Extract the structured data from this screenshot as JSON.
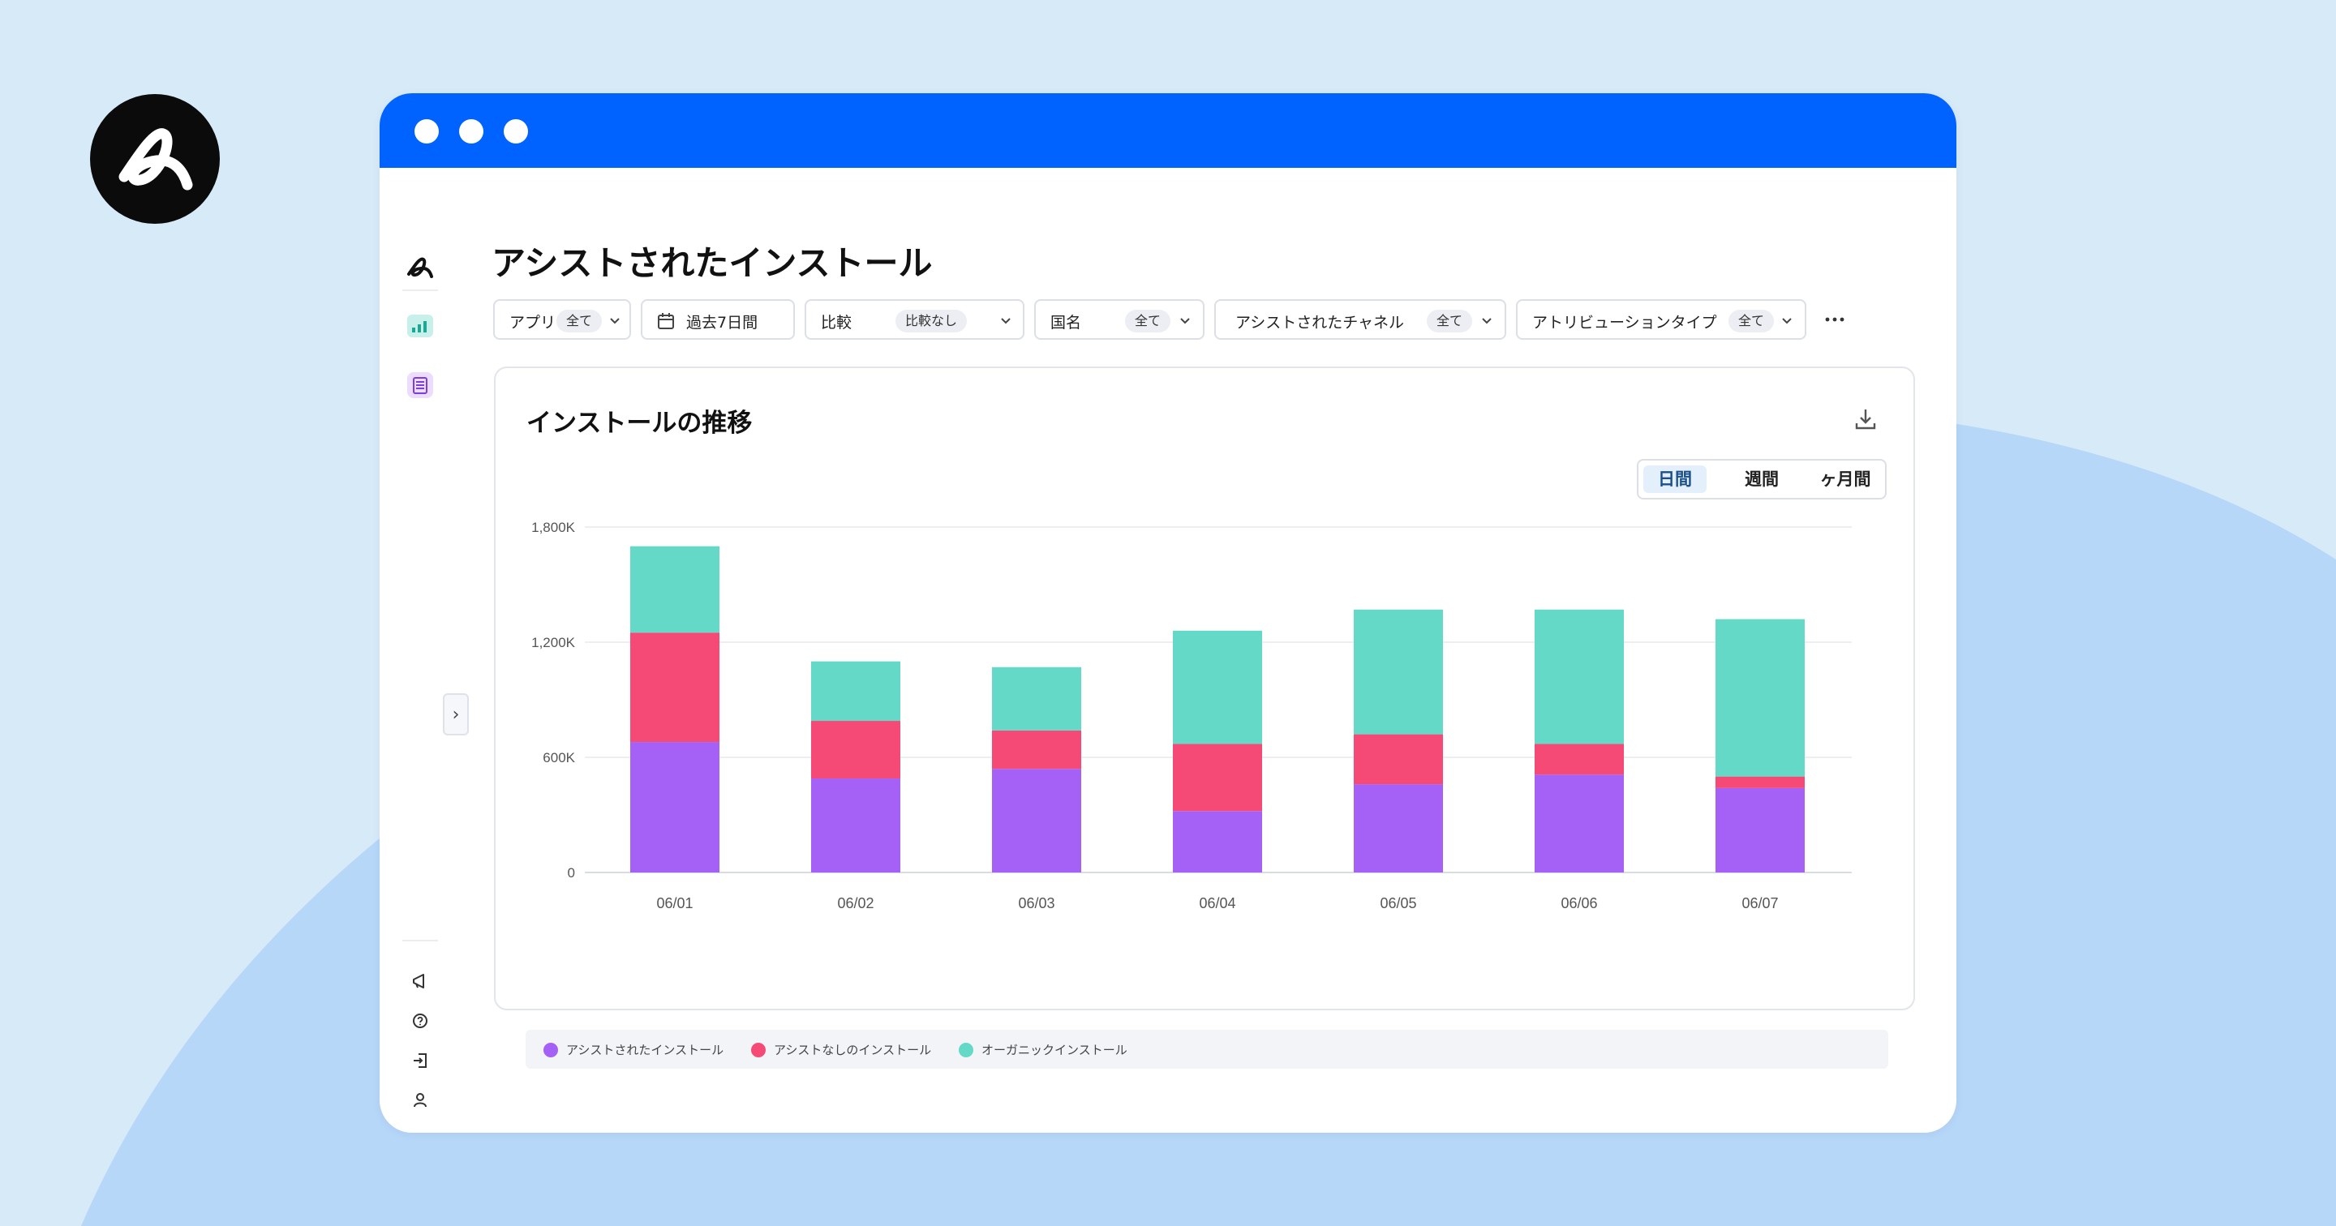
{
  "page": {
    "title": "アシストされたインストール"
  },
  "filters": [
    {
      "label": "アプリ",
      "value": "全て"
    },
    {
      "label": "過去7日間",
      "value": ""
    },
    {
      "label": "比較",
      "value": "比較なし"
    },
    {
      "label": "国名",
      "value": "全て"
    },
    {
      "label": "アシストされたチャネル",
      "value": "全て"
    },
    {
      "label": "アトリビューションタイプ",
      "value": "全て"
    }
  ],
  "card": {
    "title": "インストールの推移",
    "period_options": [
      "日間",
      "週間",
      "ヶ月間"
    ],
    "period_selected": "日間"
  },
  "icons": {
    "brand": "adjust-logo-icon",
    "sidebar_top": [
      "adjust-logo-icon",
      "dashboard-chart-icon",
      "report-list-icon"
    ],
    "sidebar_bottom": [
      "megaphone-icon",
      "help-icon",
      "logout-icon",
      "user-icon"
    ]
  },
  "colors": {
    "titlebar": "#0062ff",
    "assisted": "#a560f5",
    "unassisted": "#f64a76",
    "organic": "#64d9c7"
  },
  "chart_data": {
    "type": "bar",
    "stacked": true,
    "categories": [
      "06/01",
      "06/02",
      "06/03",
      "06/04",
      "06/05",
      "06/06",
      "06/07"
    ],
    "series": [
      {
        "name": "アシストされたインストール",
        "values": [
          680,
          490,
          540,
          320,
          460,
          510,
          440
        ]
      },
      {
        "name": "アシストなしのインストール",
        "values": [
          570,
          300,
          200,
          350,
          260,
          160,
          60
        ]
      },
      {
        "name": "オーガニックインストール",
        "values": [
          450,
          310,
          330,
          590,
          650,
          700,
          820
        ]
      }
    ],
    "ylim": [
      0,
      1800
    ],
    "y_ticks": [
      0,
      600,
      1200,
      1800
    ],
    "y_tick_labels": [
      "0",
      "600K",
      "1,200K",
      "1,800K"
    ],
    "grid": true,
    "legend": "bottom"
  }
}
